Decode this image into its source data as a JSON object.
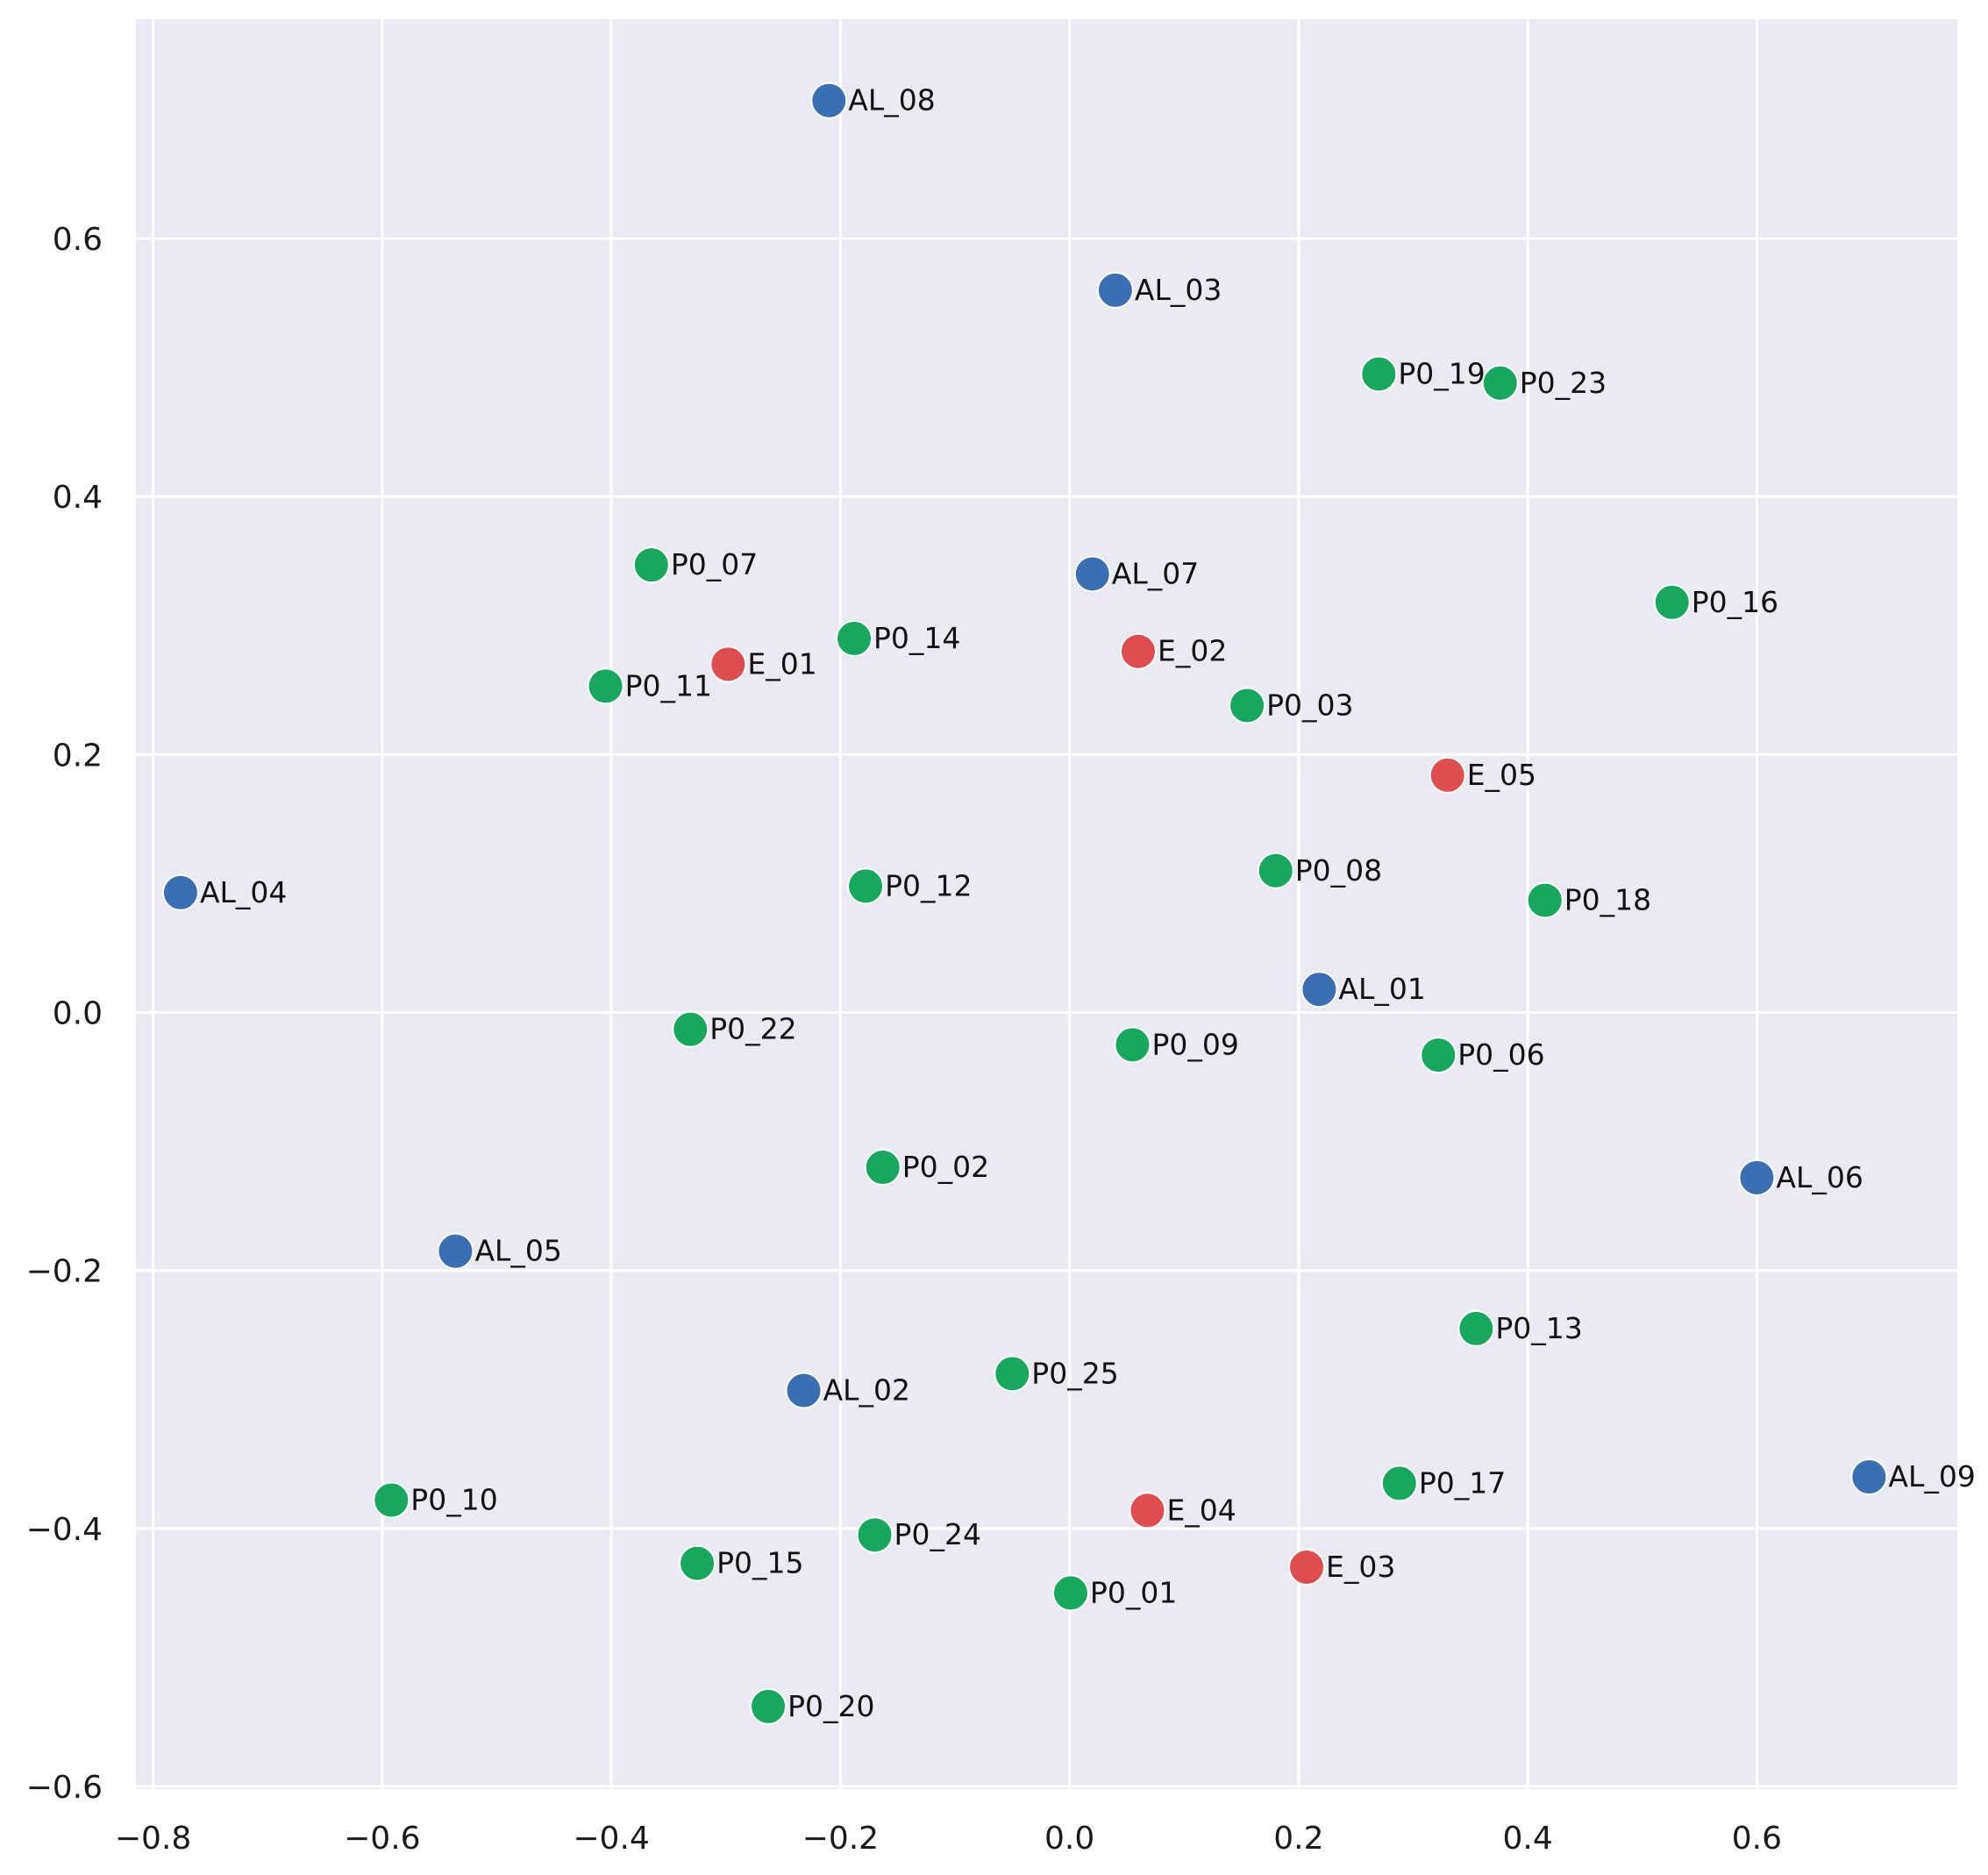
{
  "chart_data": {
    "type": "scatter",
    "title": "",
    "xlabel": "",
    "ylabel": "",
    "xlim": [
      -0.815,
      0.775
    ],
    "ylim": [
      -0.602,
      0.77
    ],
    "grid": true,
    "background": "#eaeaf2",
    "xticks": [
      -0.8,
      -0.6,
      -0.4,
      -0.2,
      0.0,
      0.2,
      0.4,
      0.6
    ],
    "xtick_labels": [
      "−0.8",
      "−0.6",
      "−0.4",
      "−0.2",
      "0.0",
      "0.2",
      "0.4",
      "0.6"
    ],
    "yticks": [
      -0.6,
      -0.4,
      -0.2,
      0.0,
      0.2,
      0.4,
      0.6
    ],
    "ytick_labels": [
      "−0.6",
      "−0.4",
      "−0.2",
      "0.0",
      "0.2",
      "0.4",
      "0.6"
    ],
    "colors": {
      "AL": "#3a6fb4",
      "E": "#de4e4e",
      "P0": "#17a85d"
    },
    "points": [
      {
        "label": "AL_08",
        "group": "AL",
        "x": -0.21,
        "y": 0.707
      },
      {
        "label": "AL_03",
        "group": "AL",
        "x": 0.04,
        "y": 0.56
      },
      {
        "label": "AL_07",
        "group": "AL",
        "x": 0.02,
        "y": 0.34
      },
      {
        "label": "AL_04",
        "group": "AL",
        "x": -0.776,
        "y": 0.093
      },
      {
        "label": "AL_01",
        "group": "AL",
        "x": 0.218,
        "y": 0.018
      },
      {
        "label": "AL_06",
        "group": "AL",
        "x": 0.6,
        "y": -0.128
      },
      {
        "label": "AL_05",
        "group": "AL",
        "x": -0.536,
        "y": -0.185
      },
      {
        "label": "AL_02",
        "group": "AL",
        "x": -0.232,
        "y": -0.293
      },
      {
        "label": "AL_09",
        "group": "AL",
        "x": 0.698,
        "y": -0.36
      },
      {
        "label": "E_01",
        "group": "E",
        "x": -0.298,
        "y": 0.27
      },
      {
        "label": "E_02",
        "group": "E",
        "x": 0.06,
        "y": 0.28
      },
      {
        "label": "E_05",
        "group": "E",
        "x": 0.33,
        "y": 0.184
      },
      {
        "label": "E_04",
        "group": "E",
        "x": 0.068,
        "y": -0.386
      },
      {
        "label": "E_03",
        "group": "E",
        "x": 0.207,
        "y": -0.43
      },
      {
        "label": "P0_19",
        "group": "P0",
        "x": 0.27,
        "y": 0.495
      },
      {
        "label": "P0_23",
        "group": "P0",
        "x": 0.376,
        "y": 0.488
      },
      {
        "label": "P0_07",
        "group": "P0",
        "x": -0.365,
        "y": 0.347
      },
      {
        "label": "P0_16",
        "group": "P0",
        "x": 0.526,
        "y": 0.318
      },
      {
        "label": "P0_14",
        "group": "P0",
        "x": -0.188,
        "y": 0.29
      },
      {
        "label": "P0_11",
        "group": "P0",
        "x": -0.405,
        "y": 0.253
      },
      {
        "label": "P0_03",
        "group": "P0",
        "x": 0.155,
        "y": 0.238
      },
      {
        "label": "P0_08",
        "group": "P0",
        "x": 0.18,
        "y": 0.11
      },
      {
        "label": "P0_12",
        "group": "P0",
        "x": -0.178,
        "y": 0.098
      },
      {
        "label": "P0_18",
        "group": "P0",
        "x": 0.415,
        "y": 0.087
      },
      {
        "label": "P0_22",
        "group": "P0",
        "x": -0.331,
        "y": -0.013
      },
      {
        "label": "P0_09",
        "group": "P0",
        "x": 0.055,
        "y": -0.025
      },
      {
        "label": "P0_06",
        "group": "P0",
        "x": 0.322,
        "y": -0.033
      },
      {
        "label": "P0_02",
        "group": "P0",
        "x": -0.163,
        "y": -0.12
      },
      {
        "label": "P0_13",
        "group": "P0",
        "x": 0.355,
        "y": -0.245
      },
      {
        "label": "P0_25",
        "group": "P0",
        "x": -0.05,
        "y": -0.28
      },
      {
        "label": "P0_17",
        "group": "P0",
        "x": 0.288,
        "y": -0.365
      },
      {
        "label": "P0_10",
        "group": "P0",
        "x": -0.592,
        "y": -0.378
      },
      {
        "label": "P0_24",
        "group": "P0",
        "x": -0.17,
        "y": -0.405
      },
      {
        "label": "P0_15",
        "group": "P0",
        "x": -0.325,
        "y": -0.427
      },
      {
        "label": "P0_01",
        "group": "P0",
        "x": 0.001,
        "y": -0.45
      },
      {
        "label": "P0_20",
        "group": "P0",
        "x": -0.263,
        "y": -0.538
      }
    ]
  }
}
